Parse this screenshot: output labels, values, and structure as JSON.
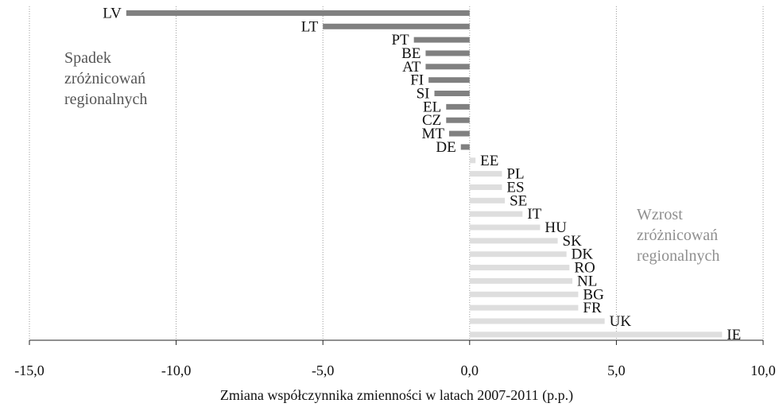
{
  "chart_data": {
    "type": "bar",
    "orientation": "horizontal",
    "categories": [
      "LV",
      "LT",
      "PT",
      "BE",
      "AT",
      "FI",
      "SI",
      "EL",
      "CZ",
      "MT",
      "DE",
      "EE",
      "PL",
      "ES",
      "SE",
      "IT",
      "HU",
      "SK",
      "DK",
      "RO",
      "NL",
      "BG",
      "FR",
      "UK",
      "IE"
    ],
    "values": [
      -11.7,
      -5.0,
      -1.9,
      -1.5,
      -1.5,
      -1.4,
      -1.2,
      -0.8,
      -0.8,
      -0.7,
      -0.3,
      0.2,
      1.1,
      1.1,
      1.2,
      1.8,
      2.4,
      3.0,
      3.3,
      3.4,
      3.5,
      3.7,
      3.7,
      4.6,
      8.6
    ],
    "negative_color": "#808080",
    "positive_color": "#dedede",
    "xlim": [
      -15.0,
      10.0
    ],
    "x_ticks": [
      "-15,0",
      "-10,0",
      "-5,0",
      "0,0",
      "5,0",
      "10,0"
    ],
    "xlabel": "Zmiana współczynnika zmienności w latach 2007-2011 (p.p.)",
    "ylabel": "",
    "title": "",
    "grid": "vertical dotted",
    "annotations": {
      "decrease": [
        "Spadek",
        "zróżnicowań",
        "regionalnych"
      ],
      "increase": [
        "Wzrost",
        "zróżnicowań",
        "regionalnych"
      ]
    }
  }
}
